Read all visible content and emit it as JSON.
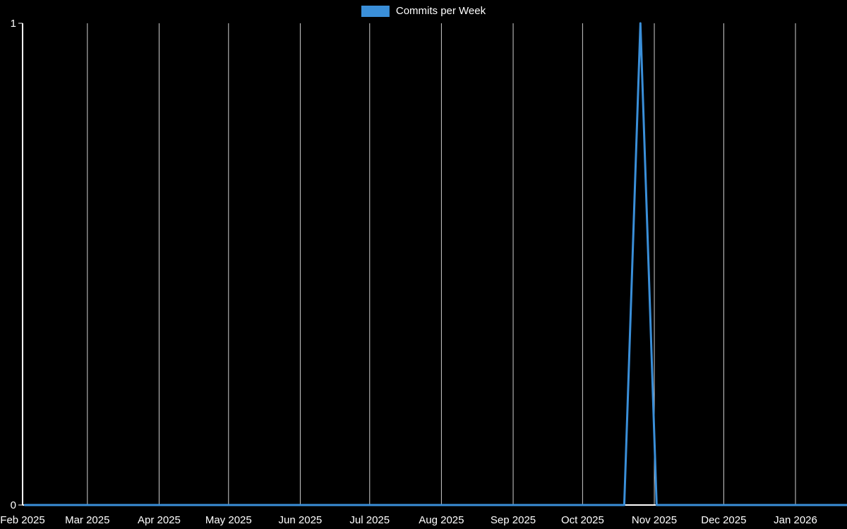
{
  "legend": {
    "label": "Commits per Week",
    "swatch_color": "#3a8fd9"
  },
  "chart_data": {
    "type": "line",
    "title": "Commits per Week",
    "legend_entries": [
      "Commits per Week"
    ],
    "legend_position": "top-center",
    "background_color": "#000000",
    "axis_color": "#ffffff",
    "grid_color": "#cfcfcf",
    "grid": "vertical-monthly",
    "ylabel": "",
    "xlabel": "",
    "ylim": [
      0,
      1
    ],
    "y_ticks": [
      0,
      1
    ],
    "x_ticks": [
      {
        "label": "Feb 2025",
        "date": "2025-02-01"
      },
      {
        "label": "Mar 2025",
        "date": "2025-03-01"
      },
      {
        "label": "Apr 2025",
        "date": "2025-04-01"
      },
      {
        "label": "May 2025",
        "date": "2025-05-01"
      },
      {
        "label": "Jun 2025",
        "date": "2025-06-01"
      },
      {
        "label": "Jul 2025",
        "date": "2025-07-01"
      },
      {
        "label": "Aug 2025",
        "date": "2025-08-01"
      },
      {
        "label": "Sep 2025",
        "date": "2025-09-01"
      },
      {
        "label": "Oct 2025",
        "date": "2025-10-01"
      },
      {
        "label": "Nov 2025",
        "date": "2025-11-01"
      },
      {
        "label": "Dec 2025",
        "date": "2025-12-01"
      },
      {
        "label": "Jan 2026",
        "date": "2026-01-01"
      }
    ],
    "series": [
      {
        "name": "Commits per Week",
        "color": "#3a8fd9",
        "line_width": 3,
        "x": [
          "2025-02-02",
          "2025-02-09",
          "2025-02-16",
          "2025-02-23",
          "2025-03-02",
          "2025-03-09",
          "2025-03-16",
          "2025-03-23",
          "2025-03-30",
          "2025-04-06",
          "2025-04-13",
          "2025-04-20",
          "2025-04-27",
          "2025-05-04",
          "2025-05-11",
          "2025-05-18",
          "2025-05-25",
          "2025-06-01",
          "2025-06-08",
          "2025-06-15",
          "2025-06-22",
          "2025-06-29",
          "2025-07-06",
          "2025-07-13",
          "2025-07-20",
          "2025-07-27",
          "2025-08-03",
          "2025-08-10",
          "2025-08-17",
          "2025-08-24",
          "2025-08-31",
          "2025-09-07",
          "2025-09-14",
          "2025-09-21",
          "2025-09-28",
          "2025-10-05",
          "2025-10-12",
          "2025-10-19",
          "2025-10-26",
          "2025-11-02",
          "2025-11-09",
          "2025-11-16",
          "2025-11-23",
          "2025-11-30",
          "2025-12-07",
          "2025-12-14",
          "2025-12-21",
          "2025-12-28",
          "2026-01-04",
          "2026-01-11",
          "2026-01-18",
          "2026-01-25"
        ],
        "values": [
          0,
          0,
          0,
          0,
          0,
          0,
          0,
          0,
          0,
          0,
          0,
          0,
          0,
          0,
          0,
          0,
          0,
          0,
          0,
          0,
          0,
          0,
          0,
          0,
          0,
          0,
          0,
          0,
          0,
          0,
          0,
          0,
          0,
          0,
          0,
          0,
          0,
          0,
          1,
          0,
          0,
          0,
          0,
          0,
          0,
          0,
          0,
          0,
          0,
          0,
          0,
          0
        ]
      }
    ]
  }
}
